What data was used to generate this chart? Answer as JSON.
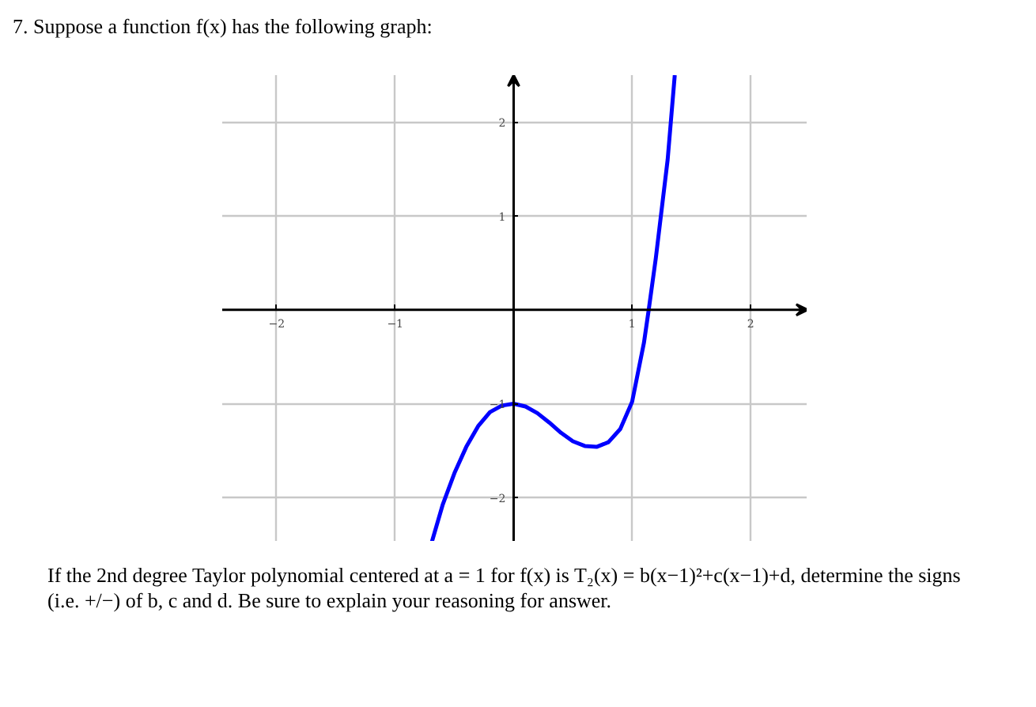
{
  "chart_data": {
    "type": "line",
    "title": "7. Suppose a function f(x) has the following graph:",
    "annotations": [
      "If the 2nd degree Taylor polynomial centered at a = 1 for f(x) is T₂(x) = b(x−1)²+c(x−1)+d, determine the signs (i.e. +/−) of b, c and d. Be sure to explain your reasoning for answer."
    ],
    "x": [
      -0.69,
      -0.6,
      -0.5,
      -0.4,
      -0.3,
      -0.2,
      -0.1,
      0,
      0.1,
      0.2,
      0.3,
      0.4,
      0.5,
      0.6,
      0.7,
      0.8,
      0.9,
      1.0,
      1.1,
      1.14,
      1.2,
      1.3,
      1.36
    ],
    "series": [
      {
        "color": "#0000ff",
        "values": [
          -2.47,
          -2.08,
          -1.74,
          -1.46,
          -1.24,
          -1.09,
          -1.02,
          -1.0,
          -1.03,
          -1.1,
          -1.2,
          -1.31,
          -1.4,
          -1.45,
          -1.46,
          -1.41,
          -1.27,
          -0.98,
          -0.35,
          0.0,
          0.55,
          1.6,
          2.5
        ]
      }
    ],
    "xlim": [
      -2.46,
      2.48
    ],
    "ylim": [
      -2.47,
      2.5
    ],
    "xticks": [
      -2,
      -1,
      1,
      2
    ],
    "yticks": [
      -2,
      -1,
      1,
      2
    ],
    "grid": true,
    "marker": "none",
    "line_style": "solid"
  }
}
